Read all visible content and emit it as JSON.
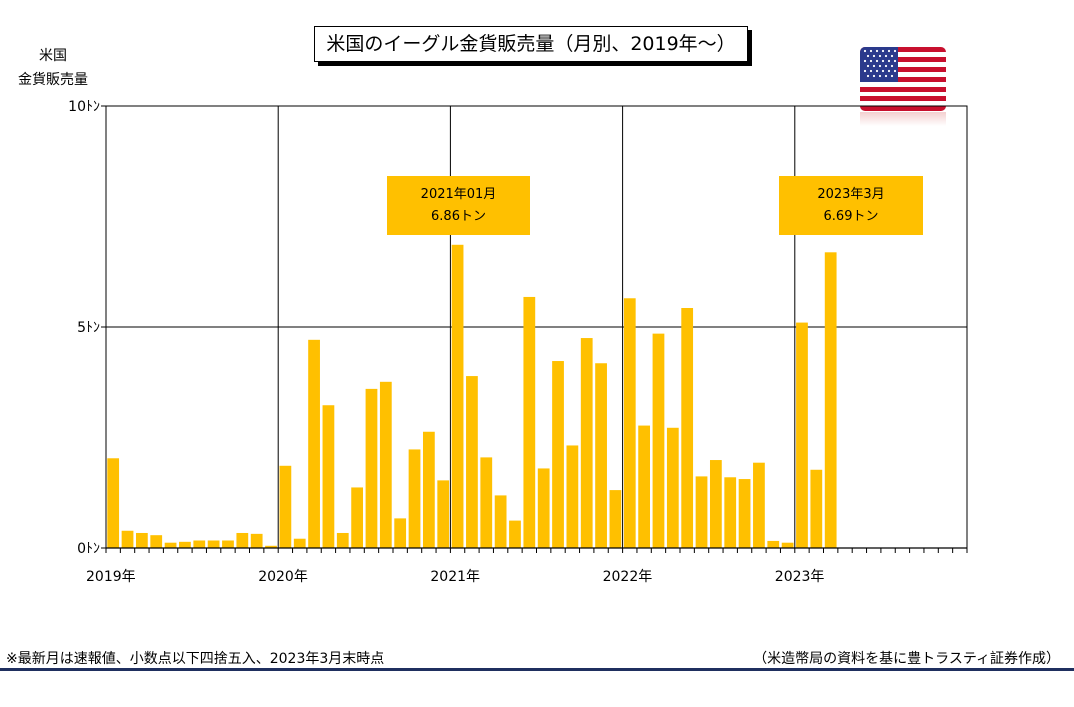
{
  "title": "米国のイーグル金貨販売量（月別、2019年～）",
  "ylabel": [
    "米国",
    "金貨販売量"
  ],
  "callouts": [
    {
      "line1": "2021年01月",
      "line2": "6.86トン"
    },
    {
      "line1": "2023年3月",
      "line2": "6.69トン"
    }
  ],
  "footer_note": "※最新月は速報値、小数点以下四捨五入、2023年3月末時点",
  "footer_source": "（米造幣局の資料を基に豊トラスティ証券作成）",
  "chart_data": {
    "type": "bar",
    "y_unit": "トン",
    "ylim": [
      0,
      10
    ],
    "y_ticks": [
      {
        "value": 0,
        "label": "0ﾄﾝ"
      },
      {
        "value": 5,
        "label": "5ﾄﾝ"
      },
      {
        "value": 10,
        "label": "10ﾄﾝ"
      }
    ],
    "year_labels": [
      "2019年",
      "2020年",
      "2021年",
      "2022年",
      "2023年"
    ],
    "bar_color": "#ffc000",
    "grid": true,
    "values": [
      2.03,
      0.39,
      0.34,
      0.29,
      0.12,
      0.14,
      0.17,
      0.17,
      0.17,
      0.34,
      0.32,
      0.05,
      1.86,
      0.21,
      4.71,
      3.23,
      0.34,
      1.37,
      3.6,
      3.76,
      0.67,
      2.23,
      2.63,
      1.53,
      6.86,
      3.89,
      2.05,
      1.19,
      0.62,
      5.68,
      1.8,
      4.23,
      2.32,
      4.75,
      4.18,
      1.31,
      5.65,
      2.77,
      4.85,
      2.72,
      5.43,
      1.62,
      1.99,
      1.6,
      1.56,
      1.93,
      0.16,
      0.12,
      5.1,
      1.77,
      6.69
    ]
  }
}
